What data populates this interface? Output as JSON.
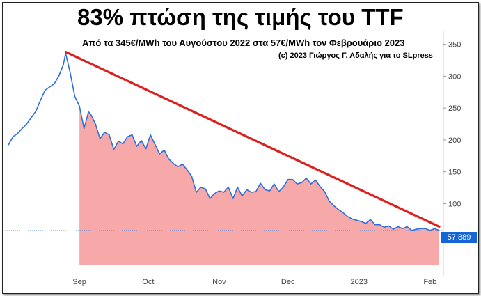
{
  "header": {
    "title": "83% πτώση της τιμής του TTF",
    "subtitle": "Από τα 345€/MWh του Αυγούστου 2022 στα 57€/MWh τον Φεβρουάριο 2023",
    "credit": "(c) 2023 Γιώργος Γ. Αδαλής για το SLpress"
  },
  "chart_data": {
    "type": "line",
    "title": "83% πτώση της τιμής του TTF",
    "subtitle": "Από τα 345€/MWh του Αυγούστου 2022 στα 57€/MWh τον Φεβρουάριο 2023",
    "xlabel": "",
    "ylabel": "",
    "x_ticks": [
      "Sep",
      "Oct",
      "Nov",
      "Dec",
      "2023",
      "Feb"
    ],
    "x_tick_dates": [
      "2022-09-01",
      "2022-10-01",
      "2022-11-01",
      "2022-12-01",
      "2023-01-01",
      "2023-02-01"
    ],
    "y_ticks": [
      100,
      150,
      200,
      250,
      300,
      350
    ],
    "ylim": [
      0,
      355
    ],
    "xlim": [
      "2022-08-01",
      "2023-02-05"
    ],
    "grid": false,
    "legend": "none",
    "last_value_label": "57.889",
    "colors": {
      "line": "#2f6fdc",
      "fill": "#f7a8a8",
      "trend": "#dd1f1f",
      "badge": "#1565d8",
      "reference": "#5588dd"
    },
    "series": [
      {
        "x": [
          "2022-08-01",
          "2022-08-03",
          "2022-08-05",
          "2022-08-07",
          "2022-08-09",
          "2022-08-11",
          "2022-08-13",
          "2022-08-15",
          "2022-08-17",
          "2022-08-19",
          "2022-08-21",
          "2022-08-23",
          "2022-08-25",
          "2022-08-26",
          "2022-08-28",
          "2022-08-30",
          "2022-09-01",
          "2022-09-03",
          "2022-09-05",
          "2022-09-06",
          "2022-09-08",
          "2022-09-10",
          "2022-09-12",
          "2022-09-14",
          "2022-09-16",
          "2022-09-18",
          "2022-09-20",
          "2022-09-22",
          "2022-09-24",
          "2022-09-26",
          "2022-09-28",
          "2022-09-30",
          "2022-10-02",
          "2022-10-04",
          "2022-10-06",
          "2022-10-08",
          "2022-10-10",
          "2022-10-12",
          "2022-10-14",
          "2022-10-16",
          "2022-10-18",
          "2022-10-20",
          "2022-10-22",
          "2022-10-24",
          "2022-10-26",
          "2022-10-28",
          "2022-10-30",
          "2022-11-01",
          "2022-11-03",
          "2022-11-05",
          "2022-11-07",
          "2022-11-09",
          "2022-11-11",
          "2022-11-13",
          "2022-11-15",
          "2022-11-17",
          "2022-11-19",
          "2022-11-21",
          "2022-11-23",
          "2022-11-25",
          "2022-11-27",
          "2022-11-29",
          "2022-12-01",
          "2022-12-03",
          "2022-12-05",
          "2022-12-07",
          "2022-12-09",
          "2022-12-11",
          "2022-12-13",
          "2022-12-15",
          "2022-12-17",
          "2022-12-19",
          "2022-12-21",
          "2022-12-23",
          "2022-12-25",
          "2022-12-27",
          "2022-12-29",
          "2022-12-31",
          "2023-01-02",
          "2023-01-04",
          "2023-01-06",
          "2023-01-08",
          "2023-01-10",
          "2023-01-12",
          "2023-01-14",
          "2023-01-16",
          "2023-01-18",
          "2023-01-20",
          "2023-01-22",
          "2023-01-24",
          "2023-01-26",
          "2023-01-28",
          "2023-01-30",
          "2023-02-01",
          "2023-02-03",
          "2023-02-05"
        ],
        "values": [
          192,
          205,
          210,
          218,
          225,
          235,
          245,
          262,
          278,
          283,
          288,
          300,
          318,
          336,
          305,
          268,
          253,
          218,
          244,
          240,
          225,
          202,
          212,
          208,
          185,
          198,
          194,
          205,
          208,
          190,
          199,
          186,
          208,
          193,
          178,
          184,
          170,
          163,
          158,
          162,
          153,
          143,
          118,
          126,
          123,
          108,
          116,
          120,
          118,
          126,
          108,
          126,
          112,
          122,
          118,
          119,
          132,
          122,
          120,
          131,
          119,
          126,
          138,
          138,
          131,
          133,
          140,
          131,
          137,
          127,
          119,
          104,
          97,
          91,
          86,
          80,
          76,
          74,
          72,
          69,
          75,
          67,
          67,
          63,
          65,
          60,
          64,
          61,
          64,
          58,
          60,
          61,
          61,
          58,
          61,
          58
        ]
      }
    ],
    "trendline": {
      "from": {
        "x": "2022-08-26",
        "y": 338
      },
      "to": {
        "x": "2023-02-05",
        "y": 64
      }
    },
    "reference_line": 57.889
  }
}
